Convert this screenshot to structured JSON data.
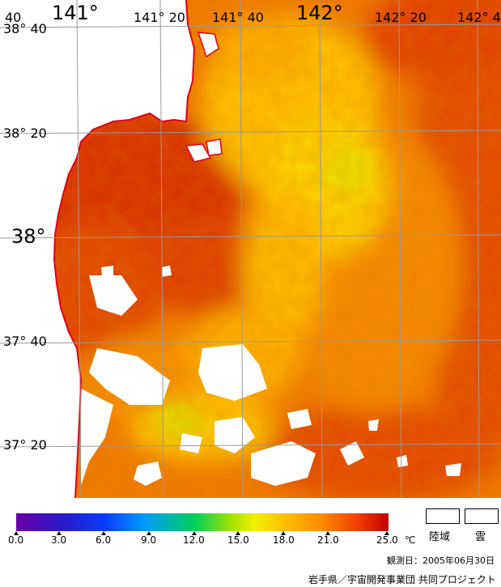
{
  "map": {
    "lon_labels": [
      {
        "id": "lon-141",
        "text": "141°",
        "size": "big"
      },
      {
        "id": "lon-141-20",
        "text": "141° 20",
        "size": "small"
      },
      {
        "id": "lon-141-40",
        "text": "141° 40",
        "size": "small"
      },
      {
        "id": "lon-142",
        "text": "142°",
        "size": "big"
      },
      {
        "id": "lon-142-20",
        "text": "142° 20",
        "size": "small"
      },
      {
        "id": "lon-142-40",
        "text": "142° 4",
        "size": "small"
      },
      {
        "id": "lon-140-40",
        "text": "40",
        "size": "small"
      }
    ],
    "lat_labels": [
      {
        "id": "lat-38-40",
        "text": "38° 40",
        "size": "small"
      },
      {
        "id": "lat-38-20",
        "text": "38° 20",
        "size": "small"
      },
      {
        "id": "lat-38",
        "text": "38°",
        "size": "big"
      },
      {
        "id": "lat-37-40",
        "text": "37° 40",
        "size": "small"
      },
      {
        "id": "lat-37-20",
        "text": "37° 20",
        "size": "small"
      }
    ],
    "coastline_color": "#e0001a",
    "grid_color": "#9a9a9a"
  },
  "colorbar": {
    "ticks": [
      "0.0",
      "3.0",
      "6.0",
      "9.0",
      "12.0",
      "15.0",
      "18.0",
      "21.0",
      "25.0"
    ],
    "unit": "℃",
    "min": 0.0,
    "max": 25.0
  },
  "legend": {
    "land_label": "陸域",
    "cloud_label": "雲"
  },
  "observation_date": "観測日：2005年06月30日",
  "credit": "岩手県／宇宙開発事業団  共同プロジェクト"
}
